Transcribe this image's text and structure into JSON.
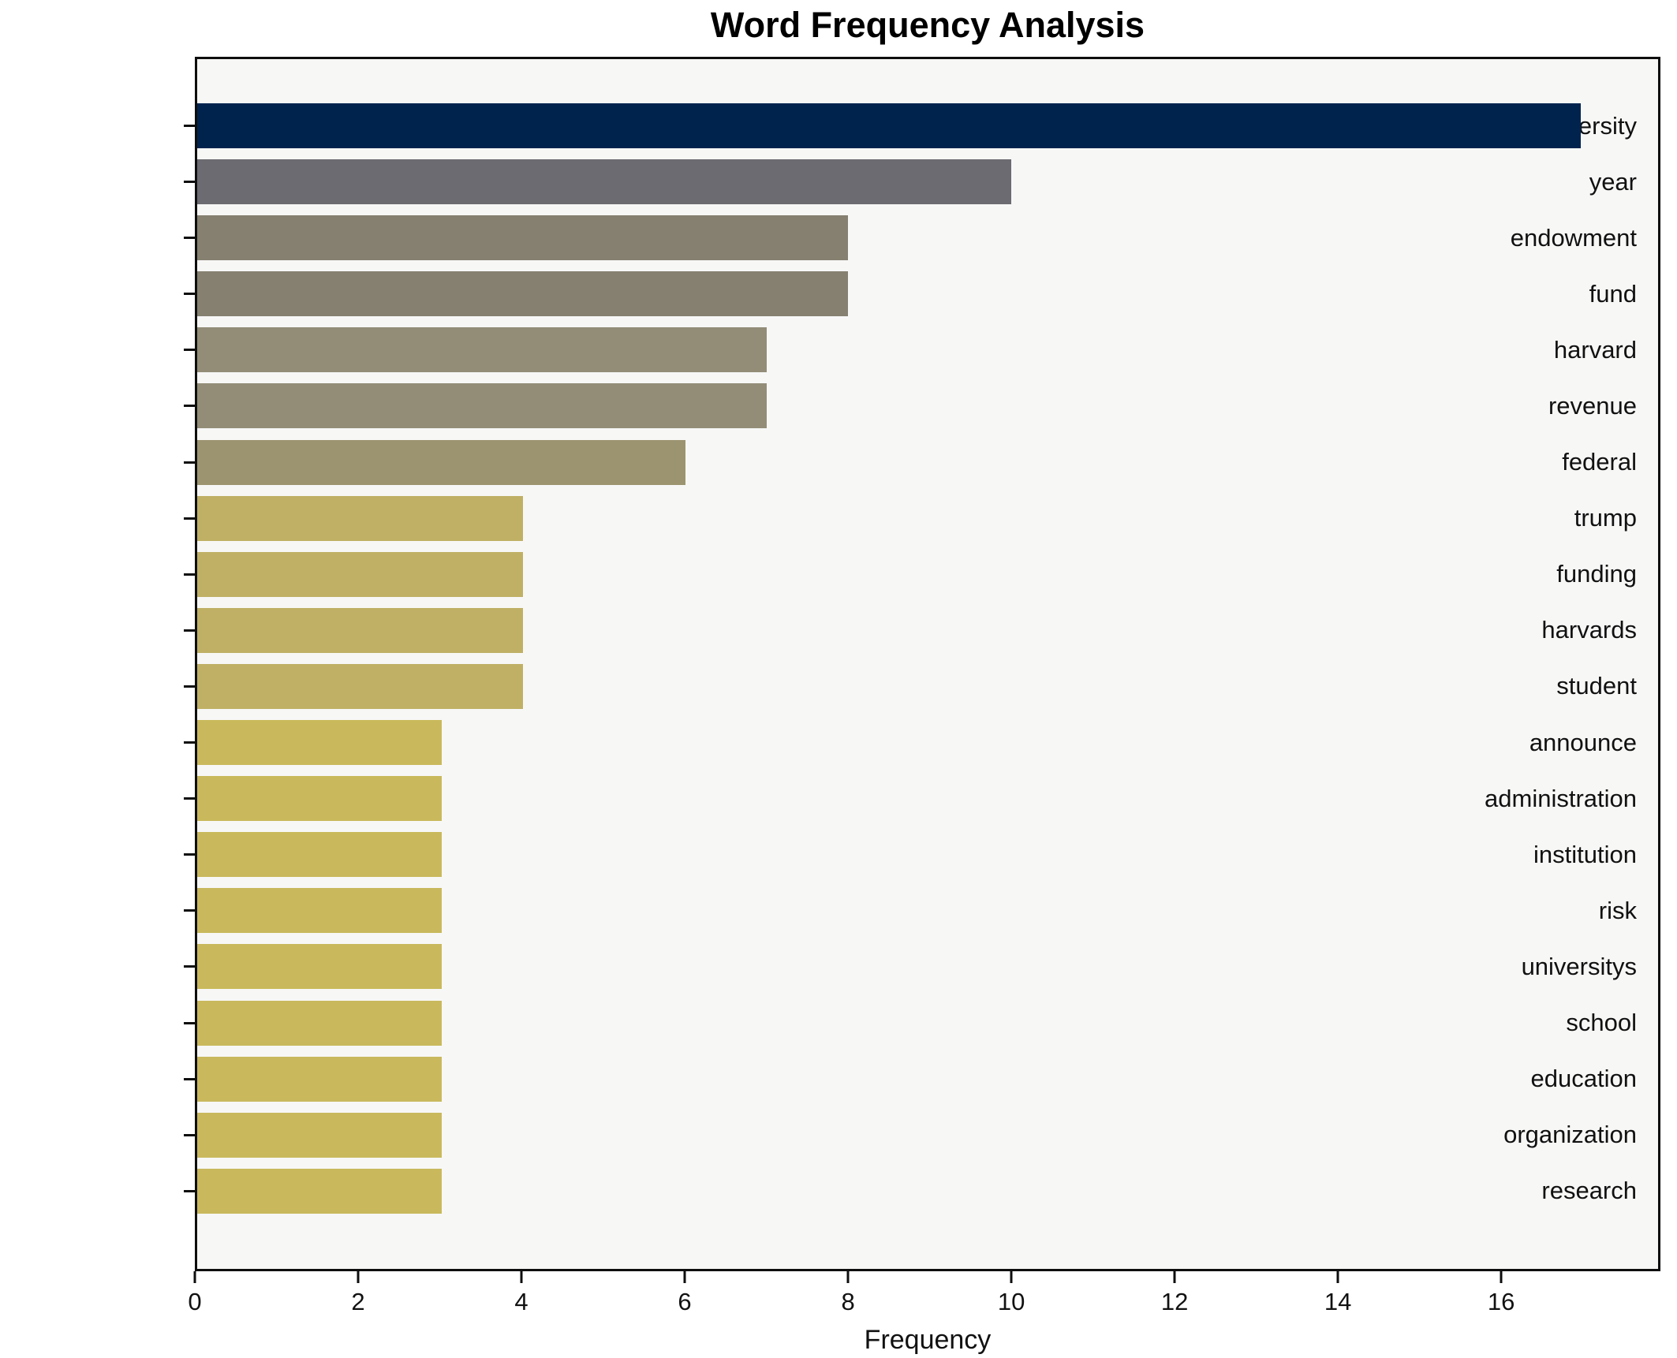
{
  "chart_data": {
    "type": "bar",
    "orientation": "horizontal",
    "title": "Word Frequency Analysis",
    "xlabel": "Frequency",
    "ylabel": "",
    "categories": [
      "university",
      "year",
      "endowment",
      "fund",
      "harvard",
      "revenue",
      "federal",
      "trump",
      "funding",
      "harvards",
      "student",
      "announce",
      "administration",
      "institution",
      "risk",
      "universitys",
      "school",
      "education",
      "organization",
      "research"
    ],
    "values": [
      17,
      10,
      8,
      8,
      7,
      7,
      6,
      4,
      4,
      4,
      4,
      3,
      3,
      3,
      3,
      3,
      3,
      3,
      3,
      3
    ],
    "bar_colors": [
      "#00234e",
      "#6b6b71",
      "#858070",
      "#858070",
      "#938d78",
      "#938d78",
      "#9c9470",
      "#bfb065",
      "#bfb065",
      "#bfb065",
      "#bfb065",
      "#c9b95c",
      "#c9b95c",
      "#c9b95c",
      "#c9b95c",
      "#c9b95c",
      "#c9b95c",
      "#c9b95c",
      "#c9b95c",
      "#c9b95c"
    ],
    "x_ticks": [
      0,
      2,
      4,
      6,
      8,
      10,
      12,
      14,
      16
    ],
    "xlim": [
      0,
      17.95
    ],
    "grid": false,
    "legend": false,
    "plot_background": "#f7f7f6",
    "spine_color": "#0e0e0e"
  }
}
